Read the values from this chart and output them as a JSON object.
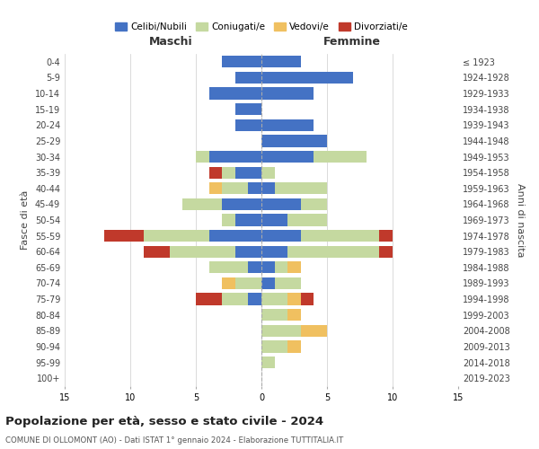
{
  "age_groups": [
    "0-4",
    "5-9",
    "10-14",
    "15-19",
    "20-24",
    "25-29",
    "30-34",
    "35-39",
    "40-44",
    "45-49",
    "50-54",
    "55-59",
    "60-64",
    "65-69",
    "70-74",
    "75-79",
    "80-84",
    "85-89",
    "90-94",
    "95-99",
    "100+"
  ],
  "birth_years": [
    "2019-2023",
    "2014-2018",
    "2009-2013",
    "2004-2008",
    "1999-2003",
    "1994-1998",
    "1989-1993",
    "1984-1988",
    "1979-1983",
    "1974-1978",
    "1969-1973",
    "1964-1968",
    "1959-1963",
    "1954-1958",
    "1949-1953",
    "1944-1948",
    "1939-1943",
    "1934-1938",
    "1929-1933",
    "1924-1928",
    "≤ 1923"
  ],
  "male": {
    "celibi": [
      3,
      2,
      4,
      2,
      2,
      0,
      4,
      2,
      1,
      3,
      2,
      4,
      2,
      1,
      0,
      1,
      0,
      0,
      0,
      0,
      0
    ],
    "coniugati": [
      0,
      0,
      0,
      0,
      0,
      0,
      1,
      1,
      2,
      3,
      1,
      5,
      5,
      3,
      2,
      2,
      0,
      0,
      0,
      0,
      0
    ],
    "vedovi": [
      0,
      0,
      0,
      0,
      0,
      0,
      0,
      0,
      1,
      0,
      0,
      0,
      0,
      0,
      1,
      0,
      0,
      0,
      0,
      0,
      0
    ],
    "divorziati": [
      0,
      0,
      0,
      0,
      0,
      0,
      0,
      1,
      0,
      0,
      0,
      3,
      2,
      0,
      0,
      2,
      0,
      0,
      0,
      0,
      0
    ]
  },
  "female": {
    "nubili": [
      3,
      7,
      4,
      0,
      4,
      5,
      4,
      0,
      1,
      3,
      2,
      3,
      2,
      1,
      1,
      0,
      0,
      0,
      0,
      0,
      0
    ],
    "coniugate": [
      0,
      0,
      0,
      0,
      0,
      0,
      4,
      1,
      4,
      2,
      3,
      6,
      7,
      1,
      2,
      2,
      2,
      3,
      2,
      1,
      0
    ],
    "vedove": [
      0,
      0,
      0,
      0,
      0,
      0,
      0,
      0,
      0,
      0,
      0,
      0,
      0,
      1,
      0,
      1,
      1,
      2,
      1,
      0,
      0
    ],
    "divorziate": [
      0,
      0,
      0,
      0,
      0,
      0,
      0,
      0,
      0,
      0,
      0,
      1,
      1,
      0,
      0,
      1,
      0,
      0,
      0,
      0,
      0
    ]
  },
  "colors": {
    "celibi_nubili": "#4472c4",
    "coniugati": "#c5d9a0",
    "vedovi": "#f0c060",
    "divorziati": "#c0392b"
  },
  "title": "Popolazione per età, sesso e stato civile - 2024",
  "subtitle": "COMUNE DI OLLOMONT (AO) - Dati ISTAT 1° gennaio 2024 - Elaborazione TUTTITALIA.IT",
  "xlabel_left": "Maschi",
  "xlabel_right": "Femmine",
  "ylabel_left": "Fasce di età",
  "ylabel_right": "Anni di nascita",
  "xlim": 15,
  "legend_labels": [
    "Celibi/Nubili",
    "Coniugati/e",
    "Vedovi/e",
    "Divorziati/e"
  ],
  "background_color": "#ffffff",
  "grid_color": "#cccccc"
}
